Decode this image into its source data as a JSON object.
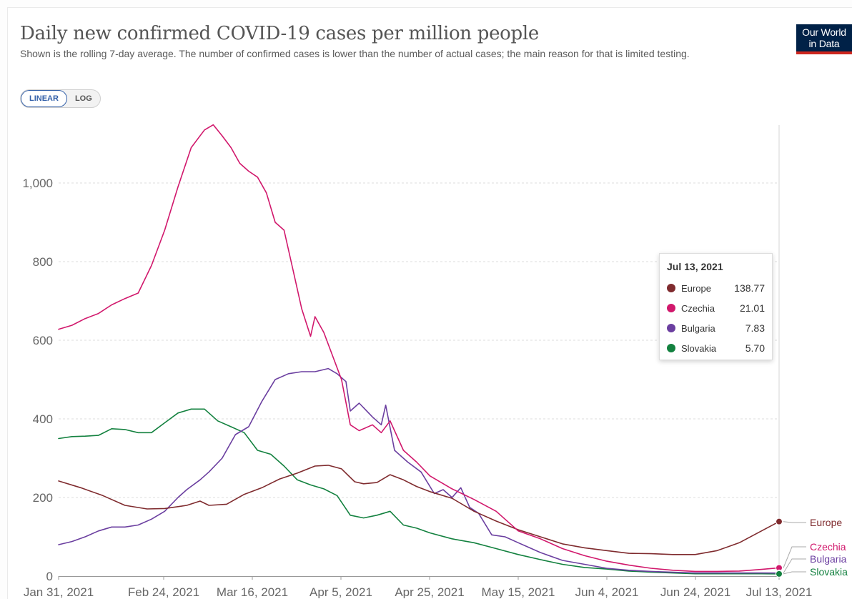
{
  "header": {
    "title": "Daily new confirmed COVID-19 cases per million people",
    "subtitle": "Shown is the rolling 7-day average. The number of confirmed cases is lower than the number of actual cases; the main reason for that is limited testing.",
    "logo_line1": "Our World",
    "logo_line2": "in Data"
  },
  "controls": {
    "linear_label": "LINEAR",
    "log_label": "LOG"
  },
  "tooltip": {
    "date": "Jul 13, 2021",
    "rows": [
      {
        "name": "Europe",
        "value": "138.77",
        "color": "#7f2b2e"
      },
      {
        "name": "Czechia",
        "value": "21.01",
        "color": "#d1186c"
      },
      {
        "name": "Bulgaria",
        "value": "7.83",
        "color": "#6b3fa0"
      },
      {
        "name": "Slovakia",
        "value": "5.70",
        "color": "#13813f"
      }
    ]
  },
  "chart_data": {
    "type": "line",
    "title": "Daily new confirmed COVID-19 cases per million people",
    "subtitle": "Shown is the rolling 7-day average. The number of confirmed cases is lower than the number of actual cases; the main reason for that is limited testing.",
    "xlabel": "",
    "ylabel": "",
    "x_start": "2021-01-31",
    "x_end": "2021-07-13",
    "x_ticks": [
      "Jan 31, 2021",
      "Feb 24, 2021",
      "Mar 16, 2021",
      "Apr 5, 2021",
      "Apr 25, 2021",
      "May 15, 2021",
      "Jun 4, 2021",
      "Jun 24, 2021",
      "Jul 13, 2021"
    ],
    "y_ticks": [
      0,
      200,
      400,
      600,
      800,
      1000
    ],
    "y_tick_labels": [
      "0",
      "200",
      "400",
      "600",
      "800",
      "1,000"
    ],
    "ylim": [
      0,
      1150
    ],
    "grid": "horizontal dashed",
    "scale": "linear",
    "series": [
      {
        "name": "Europe",
        "color": "#7f2b2e",
        "points": [
          [
            "2021-01-31",
            242
          ],
          [
            "2021-02-05",
            225
          ],
          [
            "2021-02-10",
            205
          ],
          [
            "2021-02-15",
            180
          ],
          [
            "2021-02-20",
            171
          ],
          [
            "2021-02-24",
            172
          ],
          [
            "2021-03-01",
            180
          ],
          [
            "2021-03-04",
            191
          ],
          [
            "2021-03-06",
            180
          ],
          [
            "2021-03-10",
            183
          ],
          [
            "2021-03-14",
            208
          ],
          [
            "2021-03-18",
            225
          ],
          [
            "2021-03-22",
            247
          ],
          [
            "2021-03-26",
            262
          ],
          [
            "2021-03-30",
            280
          ],
          [
            "2021-04-02",
            282
          ],
          [
            "2021-04-05",
            273
          ],
          [
            "2021-04-08",
            240
          ],
          [
            "2021-04-10",
            235
          ],
          [
            "2021-04-13",
            238
          ],
          [
            "2021-04-16",
            258
          ],
          [
            "2021-04-19",
            245
          ],
          [
            "2021-04-22",
            228
          ],
          [
            "2021-04-25",
            215
          ],
          [
            "2021-04-30",
            198
          ],
          [
            "2021-05-05",
            165
          ],
          [
            "2021-05-10",
            140
          ],
          [
            "2021-05-15",
            118
          ],
          [
            "2021-05-20",
            100
          ],
          [
            "2021-05-25",
            82
          ],
          [
            "2021-05-30",
            72
          ],
          [
            "2021-06-04",
            65
          ],
          [
            "2021-06-09",
            58
          ],
          [
            "2021-06-14",
            57
          ],
          [
            "2021-06-19",
            55
          ],
          [
            "2021-06-24",
            55
          ],
          [
            "2021-06-29",
            65
          ],
          [
            "2021-07-04",
            85
          ],
          [
            "2021-07-09",
            115
          ],
          [
            "2021-07-13",
            138.77
          ]
        ]
      },
      {
        "name": "Czechia",
        "color": "#d1186c",
        "points": [
          [
            "2021-01-31",
            628
          ],
          [
            "2021-02-03",
            638
          ],
          [
            "2021-02-06",
            655
          ],
          [
            "2021-02-09",
            668
          ],
          [
            "2021-02-12",
            690
          ],
          [
            "2021-02-15",
            706
          ],
          [
            "2021-02-18",
            720
          ],
          [
            "2021-02-21",
            790
          ],
          [
            "2021-02-24",
            880
          ],
          [
            "2021-02-27",
            990
          ],
          [
            "2021-03-02",
            1090
          ],
          [
            "2021-03-05",
            1135
          ],
          [
            "2021-03-07",
            1148
          ],
          [
            "2021-03-09",
            1120
          ],
          [
            "2021-03-11",
            1090
          ],
          [
            "2021-03-13",
            1050
          ],
          [
            "2021-03-15",
            1030
          ],
          [
            "2021-03-17",
            1015
          ],
          [
            "2021-03-19",
            975
          ],
          [
            "2021-03-21",
            900
          ],
          [
            "2021-03-23",
            880
          ],
          [
            "2021-03-25",
            780
          ],
          [
            "2021-03-27",
            680
          ],
          [
            "2021-03-29",
            610
          ],
          [
            "2021-03-30",
            660
          ],
          [
            "2021-04-01",
            620
          ],
          [
            "2021-04-03",
            560
          ],
          [
            "2021-04-05",
            500
          ],
          [
            "2021-04-07",
            385
          ],
          [
            "2021-04-09",
            370
          ],
          [
            "2021-04-12",
            385
          ],
          [
            "2021-04-14",
            365
          ],
          [
            "2021-04-16",
            395
          ],
          [
            "2021-04-19",
            320
          ],
          [
            "2021-04-22",
            290
          ],
          [
            "2021-04-25",
            255
          ],
          [
            "2021-04-30",
            222
          ],
          [
            "2021-05-05",
            195
          ],
          [
            "2021-05-10",
            165
          ],
          [
            "2021-05-15",
            115
          ],
          [
            "2021-05-20",
            95
          ],
          [
            "2021-05-25",
            70
          ],
          [
            "2021-05-30",
            52
          ],
          [
            "2021-06-04",
            38
          ],
          [
            "2021-06-09",
            28
          ],
          [
            "2021-06-14",
            20
          ],
          [
            "2021-06-19",
            15
          ],
          [
            "2021-06-24",
            12
          ],
          [
            "2021-06-29",
            12
          ],
          [
            "2021-07-04",
            13
          ],
          [
            "2021-07-09",
            17
          ],
          [
            "2021-07-13",
            21.01
          ]
        ]
      },
      {
        "name": "Bulgaria",
        "color": "#6b3fa0",
        "points": [
          [
            "2021-01-31",
            80
          ],
          [
            "2021-02-03",
            88
          ],
          [
            "2021-02-06",
            100
          ],
          [
            "2021-02-09",
            115
          ],
          [
            "2021-02-12",
            125
          ],
          [
            "2021-02-15",
            125
          ],
          [
            "2021-02-18",
            130
          ],
          [
            "2021-02-21",
            145
          ],
          [
            "2021-02-24",
            165
          ],
          [
            "2021-02-27",
            200
          ],
          [
            "2021-03-01",
            220
          ],
          [
            "2021-03-04",
            245
          ],
          [
            "2021-03-06",
            265
          ],
          [
            "2021-03-09",
            300
          ],
          [
            "2021-03-12",
            360
          ],
          [
            "2021-03-15",
            380
          ],
          [
            "2021-03-18",
            445
          ],
          [
            "2021-03-21",
            500
          ],
          [
            "2021-03-24",
            515
          ],
          [
            "2021-03-27",
            520
          ],
          [
            "2021-03-30",
            520
          ],
          [
            "2021-04-02",
            528
          ],
          [
            "2021-04-04",
            515
          ],
          [
            "2021-04-06",
            495
          ],
          [
            "2021-04-07",
            420
          ],
          [
            "2021-04-09",
            440
          ],
          [
            "2021-04-12",
            405
          ],
          [
            "2021-04-14",
            385
          ],
          [
            "2021-04-15",
            435
          ],
          [
            "2021-04-17",
            320
          ],
          [
            "2021-04-20",
            290
          ],
          [
            "2021-04-23",
            265
          ],
          [
            "2021-04-26",
            210
          ],
          [
            "2021-04-28",
            220
          ],
          [
            "2021-04-30",
            200
          ],
          [
            "2021-05-02",
            225
          ],
          [
            "2021-05-04",
            175
          ],
          [
            "2021-05-06",
            160
          ],
          [
            "2021-05-09",
            105
          ],
          [
            "2021-05-12",
            100
          ],
          [
            "2021-05-15",
            85
          ],
          [
            "2021-05-20",
            60
          ],
          [
            "2021-05-25",
            40
          ],
          [
            "2021-05-30",
            30
          ],
          [
            "2021-06-04",
            20
          ],
          [
            "2021-06-09",
            15
          ],
          [
            "2021-06-14",
            12
          ],
          [
            "2021-06-19",
            10
          ],
          [
            "2021-06-24",
            8
          ],
          [
            "2021-06-29",
            8
          ],
          [
            "2021-07-04",
            8
          ],
          [
            "2021-07-09",
            8
          ],
          [
            "2021-07-13",
            7.83
          ]
        ]
      },
      {
        "name": "Slovakia",
        "color": "#13813f",
        "points": [
          [
            "2021-01-31",
            350
          ],
          [
            "2021-02-03",
            355
          ],
          [
            "2021-02-06",
            356
          ],
          [
            "2021-02-09",
            358
          ],
          [
            "2021-02-12",
            375
          ],
          [
            "2021-02-15",
            373
          ],
          [
            "2021-02-18",
            365
          ],
          [
            "2021-02-21",
            365
          ],
          [
            "2021-02-24",
            390
          ],
          [
            "2021-02-27",
            415
          ],
          [
            "2021-03-02",
            425
          ],
          [
            "2021-03-05",
            425
          ],
          [
            "2021-03-08",
            395
          ],
          [
            "2021-03-11",
            380
          ],
          [
            "2021-03-14",
            365
          ],
          [
            "2021-03-17",
            320
          ],
          [
            "2021-03-20",
            310
          ],
          [
            "2021-03-23",
            280
          ],
          [
            "2021-03-26",
            245
          ],
          [
            "2021-03-29",
            232
          ],
          [
            "2021-04-01",
            222
          ],
          [
            "2021-04-04",
            205
          ],
          [
            "2021-04-07",
            155
          ],
          [
            "2021-04-10",
            148
          ],
          [
            "2021-04-13",
            155
          ],
          [
            "2021-04-16",
            165
          ],
          [
            "2021-04-19",
            130
          ],
          [
            "2021-04-22",
            122
          ],
          [
            "2021-04-25",
            110
          ],
          [
            "2021-04-30",
            95
          ],
          [
            "2021-05-05",
            85
          ],
          [
            "2021-05-10",
            70
          ],
          [
            "2021-05-15",
            55
          ],
          [
            "2021-05-20",
            42
          ],
          [
            "2021-05-25",
            30
          ],
          [
            "2021-05-30",
            22
          ],
          [
            "2021-06-04",
            18
          ],
          [
            "2021-06-09",
            13
          ],
          [
            "2021-06-14",
            10
          ],
          [
            "2021-06-19",
            8
          ],
          [
            "2021-06-24",
            6
          ],
          [
            "2021-06-29",
            6
          ],
          [
            "2021-07-04",
            6
          ],
          [
            "2021-07-09",
            6
          ],
          [
            "2021-07-13",
            5.7
          ]
        ]
      }
    ],
    "end_labels": [
      "Europe",
      "Czechia",
      "Bulgaria",
      "Slovakia"
    ]
  }
}
